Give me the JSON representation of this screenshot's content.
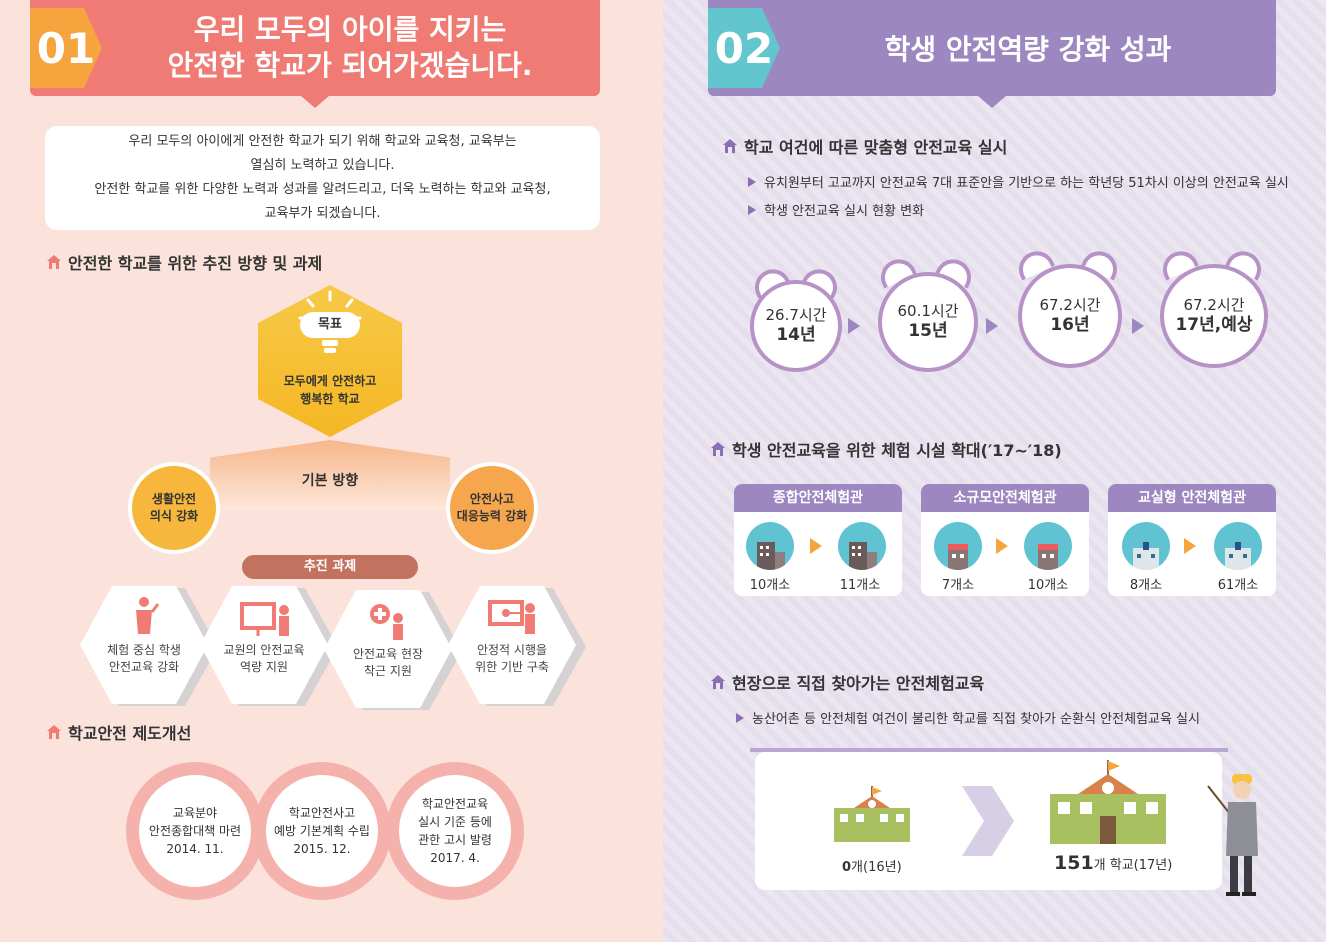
{
  "left": {
    "header": {
      "number": "01",
      "title_line1": "우리 모두의 아이를 지키는",
      "title_line2": "안전한 학교가 되어가겠습니다."
    },
    "intro": {
      "line1": "우리 모두의 아이에게 안전한 학교가 되기 위해 학교와 교육청, 교육부는",
      "line2": "열심히 노력하고 있습니다.",
      "line3": "안전한 학교를 위한 다양한 노력과 성과를 알려드리고, 더욱 노력하는 학교와 교육청,",
      "line4": "교육부가 되겠습니다."
    },
    "section1_title": "안전한 학교를 위한 추진 방향 및 과제",
    "goal": {
      "label": "목표",
      "line1": "모두에게 안전하고",
      "line2": "행복한 학교"
    },
    "basic_direction": "기본 방향",
    "direction_left": {
      "line1": "생활안전",
      "line2": "의식 강화",
      "color": "#f6b73c"
    },
    "direction_right": {
      "line1": "안전사고",
      "line2": "대응능력 강화",
      "color": "#f6a74e"
    },
    "tasks_label": "추진 과제",
    "tasks": [
      {
        "line1": "체험 중심 학생",
        "line2": "안전교육 강화",
        "icon": "teacher-student-icon"
      },
      {
        "line1": "교원의 안전교육",
        "line2": "역량 지원",
        "icon": "whiteboard-icon"
      },
      {
        "line1": "안전교육 현장",
        "line2": "착근 지원",
        "icon": "first-aid-icon"
      },
      {
        "line1": "안정적 시행을",
        "line2": "위한 기반 구축",
        "icon": "presentation-icon"
      }
    ],
    "section2_title": "학교안전 제도개선",
    "milestones": [
      {
        "line1": "교육분야",
        "line2": "안전종합대책 마련",
        "line3": "",
        "date": "2014. 11."
      },
      {
        "line1": "학교안전사고",
        "line2": "예방 기본계획 수립",
        "line3": "",
        "date": "2015. 12."
      },
      {
        "line1": "학교안전교육",
        "line2": "실시 기준 등에",
        "line3": "관한 고시 발령",
        "date": "2017. 4."
      }
    ]
  },
  "right": {
    "header": {
      "number": "02",
      "title": "학생 안전역량 강화 성과"
    },
    "section1_title": "학교 여건에 따른 맞춤형 안전교육 실시",
    "bullets1": [
      "유치원부터 고교까지 안전교육 7대 표준안을 기반으로 하는 학년당 51차시 이상의 안전교육 실시",
      "학생 안전교육 실시 현황 변화"
    ],
    "clocks": [
      {
        "hours": "26.7시간",
        "year": "14년"
      },
      {
        "hours": "60.1시간",
        "year": "15년"
      },
      {
        "hours": "67.2시간",
        "year": "16년"
      },
      {
        "hours": "67.2시간",
        "year": "17년,예상"
      }
    ],
    "section2_title": "학생 안전교육을 위한 체험 시설 확대(′17~′18)",
    "facilities": [
      {
        "name": "종합안전체험관",
        "from": "10개소",
        "to": "11개소"
      },
      {
        "name": "소규모안전체험관",
        "from": "7개소",
        "to": "10개소"
      },
      {
        "name": "교실형 안전체험관",
        "from": "8개소",
        "to": "61개소"
      }
    ],
    "section3_title": "현장으로 직접 찾아가는 안전체험교육",
    "bullet3": "농산어촌 등 안전체험 여건이 불리한 학교를 직접 찾아가 순환식 안전체험교육 실시",
    "visit_before": {
      "number": "0",
      "unit": "개(16년)"
    },
    "visit_after": {
      "number": "151",
      "unit": "개 학교(17년)"
    }
  },
  "colors": {
    "left_bg": "#fbe3db",
    "left_accent": "#f07b74",
    "right_accent": "#9d87c0",
    "teal": "#63c5cd",
    "orange": "#f6a43e"
  }
}
